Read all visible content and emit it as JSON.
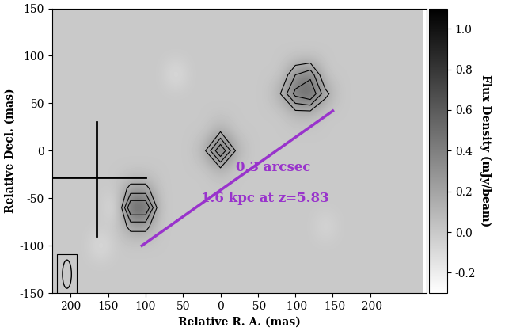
{
  "chart_data": {
    "type": "heatmap",
    "xlabel": "Relative R. A. (mas)",
    "ylabel": "Relative Decl. (mas)",
    "xlim": [
      225,
      -275
    ],
    "ylim": [
      -150,
      150
    ],
    "xticks": [
      200,
      150,
      100,
      50,
      0,
      -50,
      -100,
      -150,
      -200
    ],
    "yticks": [
      -150,
      -100,
      -50,
      0,
      50,
      100,
      150
    ],
    "x": [
      220,
      200,
      180,
      160,
      140,
      120,
      100,
      80,
      60,
      40,
      20,
      0,
      -20,
      -40,
      -60,
      -80,
      -100,
      -120,
      -140,
      -160,
      -180,
      -200,
      -220,
      -240,
      -260
    ],
    "y": [
      140,
      120,
      100,
      80,
      60,
      40,
      20,
      0,
      -20,
      -40,
      -60,
      -80,
      -100,
      -120,
      -140
    ],
    "cells": [
      [
        0,
        0,
        0,
        0,
        0,
        0,
        0,
        0,
        0,
        0,
        0,
        0,
        0,
        0,
        0,
        0,
        0,
        0,
        0,
        0,
        0,
        0,
        0,
        0,
        0
      ],
      [
        0,
        0,
        0,
        0,
        0,
        0,
        0,
        0,
        0,
        0,
        0,
        0,
        0,
        0,
        0,
        0,
        0,
        0,
        0,
        0,
        0,
        0,
        0,
        0,
        0
      ],
      [
        0,
        0,
        0,
        0,
        0,
        0,
        0,
        0,
        0,
        0,
        0,
        0,
        0,
        0,
        0,
        0,
        0,
        0,
        0,
        0,
        0,
        0,
        0,
        0,
        0
      ],
      [
        0,
        0,
        0,
        0,
        0,
        0,
        0,
        0,
        -0.15,
        0,
        0,
        0,
        0,
        0,
        0,
        0,
        0.3,
        0.4,
        0,
        0,
        0,
        0,
        0,
        0,
        0
      ],
      [
        0,
        0,
        0,
        0,
        0,
        0,
        0,
        0,
        0,
        0,
        0,
        0,
        0,
        0,
        0,
        0.15,
        0.5,
        0.6,
        0.2,
        0,
        0,
        0,
        0,
        0,
        0
      ],
      [
        0,
        0,
        0,
        0,
        0,
        0,
        0,
        0,
        0,
        0,
        0,
        0,
        0,
        0,
        0,
        0,
        0.1,
        0.1,
        0,
        0,
        0,
        0,
        0,
        0,
        0
      ],
      [
        0,
        0,
        0,
        0,
        0,
        0,
        0,
        0,
        0,
        0,
        0,
        0.15,
        0,
        0,
        0,
        0,
        0,
        0,
        0,
        0,
        0,
        0,
        0,
        0,
        0
      ],
      [
        0,
        0,
        0,
        0,
        0,
        0,
        0,
        0,
        0,
        0,
        0.15,
        0.6,
        0.15,
        0,
        0,
        0,
        0,
        0,
        0,
        0,
        0,
        0,
        0,
        0,
        0
      ],
      [
        0,
        0,
        0,
        0,
        0,
        0,
        0,
        0,
        0,
        0,
        0,
        0.1,
        0,
        0,
        0,
        0,
        0,
        0,
        0,
        0,
        0,
        0,
        0,
        0,
        0
      ],
      [
        0,
        0,
        0,
        0,
        0,
        0.2,
        0.2,
        0,
        0,
        0,
        0,
        0,
        0,
        0,
        0,
        0,
        0,
        0,
        0,
        0,
        0,
        0,
        0,
        0,
        0
      ],
      [
        0,
        0,
        0,
        0,
        -0.15,
        0.6,
        0.6,
        0,
        0,
        0,
        0,
        0,
        0,
        0,
        0,
        0,
        0,
        0,
        0,
        0,
        0,
        0,
        0,
        0,
        0
      ],
      [
        0,
        0,
        0,
        0,
        0,
        0.2,
        0.2,
        0,
        0,
        0,
        0,
        0,
        0,
        0,
        0,
        0,
        0,
        0,
        -0.1,
        0,
        0,
        0,
        0,
        0,
        0
      ],
      [
        0,
        0,
        0,
        -0.15,
        0,
        0,
        0,
        0,
        0,
        0,
        0,
        0,
        0,
        0,
        0,
        0,
        0,
        0,
        0,
        0,
        0,
        0,
        0,
        0,
        0
      ],
      [
        0,
        0,
        0,
        0,
        0,
        0,
        0,
        0,
        0,
        0,
        0,
        0,
        0,
        0,
        0,
        0,
        0,
        0,
        0,
        0,
        0,
        0,
        0,
        0,
        0
      ],
      [
        0,
        0,
        0,
        0,
        0,
        0,
        0,
        0,
        0,
        0,
        0,
        0,
        0,
        0,
        0,
        0,
        0,
        0,
        0,
        0,
        0,
        0,
        0,
        0,
        0
      ]
    ],
    "contour_levels": [
      -0.15,
      0.15,
      0.3,
      0.45
    ],
    "colorbar": {
      "label": "Flux Density (mJy/beam)",
      "lim": [
        -0.3,
        1.1
      ],
      "ticks": [
        {
          "value": -0.2,
          "label": "-0.2"
        },
        {
          "value": 0,
          "label": "0.0"
        },
        {
          "value": 0.2,
          "label": "0.2"
        },
        {
          "value": 0.4,
          "label": "0.4"
        },
        {
          "value": 0.6,
          "label": "0.6"
        },
        {
          "value": 0.8,
          "label": "0.8"
        },
        {
          "value": 1.0,
          "label": "1.0"
        }
      ]
    },
    "scale_bar": {
      "x": [
        105,
        -150
      ],
      "y": [
        -100,
        42
      ],
      "color": "#9933cc",
      "labels": [
        "0.3 arcsec",
        "1.6 kpc at z=5.83"
      ]
    },
    "cross": {
      "x": 165,
      "y": -28,
      "x_range": [
        225,
        100
      ],
      "y_range": [
        30,
        -90
      ]
    },
    "beam": {
      "x": 205,
      "y": -130,
      "width": 12,
      "height": 30
    }
  }
}
